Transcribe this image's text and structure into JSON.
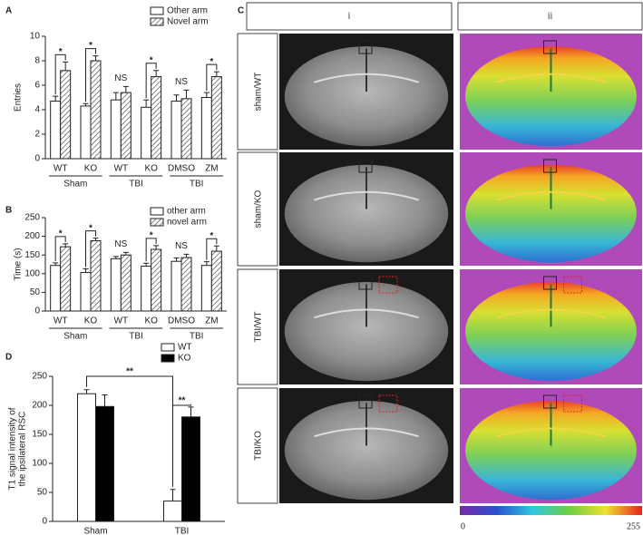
{
  "chart_data": [
    {
      "panel": "A",
      "type": "bar",
      "ylabel": "Entries",
      "categories": [
        "WT",
        "KO",
        "WT",
        "KO",
        "DMSO",
        "ZM"
      ],
      "groups": [
        "Sham",
        "TBI",
        "TBI"
      ],
      "series": [
        {
          "name": "Other arm",
          "color": "#ffffff",
          "values": [
            4.7,
            4.3,
            4.8,
            4.2,
            4.7,
            5.0
          ],
          "errors": [
            0.4,
            0.2,
            0.6,
            0.6,
            0.5,
            0.4
          ]
        },
        {
          "name": "Novel arm",
          "color": "#ffffff",
          "pattern": "hatch",
          "values": [
            7.2,
            8.0,
            5.4,
            6.7,
            4.9,
            6.7
          ],
          "errors": [
            0.7,
            0.4,
            0.5,
            0.5,
            0.7,
            0.4
          ]
        }
      ],
      "annotations": [
        "*",
        "*",
        "NS",
        "*",
        "NS",
        "*"
      ],
      "ylim": [
        0,
        10
      ],
      "yticks": [
        0,
        2,
        4,
        6,
        8,
        10
      ]
    },
    {
      "panel": "B",
      "type": "bar",
      "ylabel": "Time (s)",
      "categories": [
        "WT",
        "KO",
        "WT",
        "KO",
        "DMSO",
        "ZM"
      ],
      "groups": [
        "Sham",
        "TBI",
        "TBI"
      ],
      "series": [
        {
          "name": "other arm",
          "color": "#ffffff",
          "values": [
            122,
            103,
            140,
            120,
            133,
            122
          ],
          "errors": [
            7,
            10,
            6,
            8,
            9,
            10
          ]
        },
        {
          "name": "novel arm",
          "color": "#ffffff",
          "pattern": "hatch",
          "values": [
            172,
            188,
            150,
            165,
            143,
            160
          ],
          "errors": [
            8,
            7,
            7,
            10,
            9,
            14
          ]
        }
      ],
      "annotations": [
        "*",
        "*",
        "NS",
        "*",
        "NS",
        "*"
      ],
      "ylim": [
        0,
        250
      ],
      "yticks": [
        0,
        50,
        100,
        150,
        200,
        250
      ]
    },
    {
      "panel": "D",
      "type": "bar",
      "ylabel": [
        "T1 signal intensity of",
        "the ipsilateral RSC"
      ],
      "categories": [
        "Sham",
        "TBI"
      ],
      "series": [
        {
          "name": "WT",
          "color": "#ffffff",
          "values": [
            220,
            35
          ],
          "errors": [
            7,
            20
          ]
        },
        {
          "name": "KO",
          "color": "#000000",
          "values": [
            198,
            180
          ],
          "errors": [
            20,
            17
          ]
        }
      ],
      "brackets": [
        "**",
        "**"
      ],
      "ylim": [
        0,
        250
      ],
      "yticks": [
        0,
        50,
        100,
        150,
        200,
        250
      ]
    }
  ],
  "panel_c": {
    "panel": "C",
    "columns": [
      "i",
      "ii"
    ],
    "rows": [
      "sham/WT",
      "sham/KO",
      "TBI/WT",
      "TBI/KO"
    ],
    "colorbar": {
      "min": "0",
      "max": "255"
    }
  }
}
